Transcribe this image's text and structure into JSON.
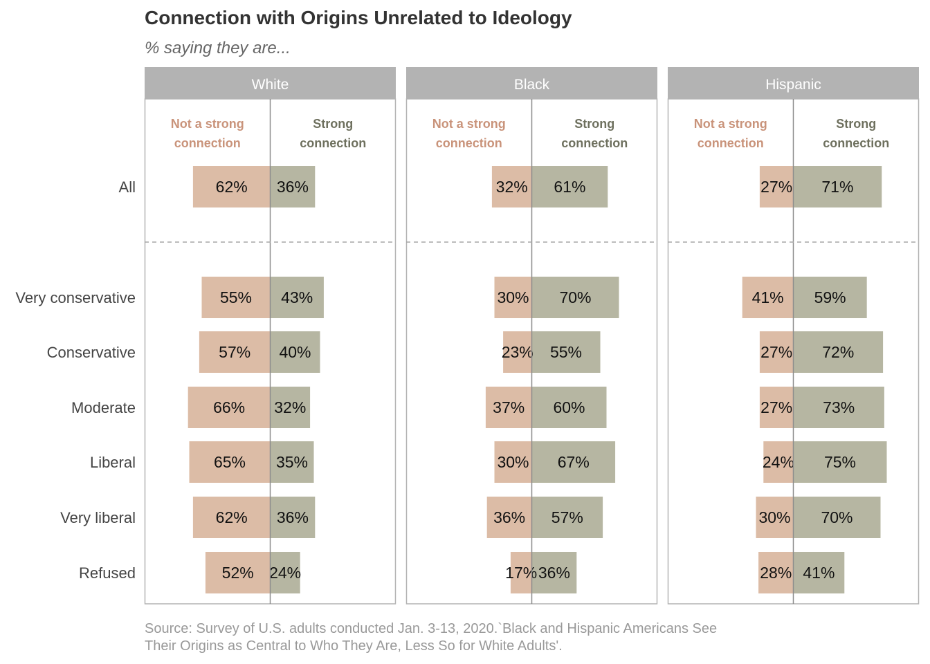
{
  "title": "Connection with Origins Unrelated to Ideology",
  "subtitle": "% saying they are...",
  "source_line1": "Source: Survey of U.S. adults conducted Jan. 3-13, 2020.`Black and Hispanic Americans See",
  "source_line2": "Their Origins as Central to Who They Are, Less So for White Adults'.",
  "colors": {
    "not_strong": "#dcbca6",
    "strong": "#b6b6a2",
    "not_strong_label": "#c9937a",
    "strong_label": "#6e705e",
    "strip": "#b3b3b3"
  },
  "chart_data": {
    "type": "bar",
    "orientation": "horizontal-diverging",
    "facets": [
      "White",
      "Black",
      "Hispanic"
    ],
    "categories": [
      "All",
      "Very conservative",
      "Conservative",
      "Moderate",
      "Liberal",
      "Very liberal",
      "Refused"
    ],
    "legend": {
      "not_strong": [
        "Not a strong",
        "connection"
      ],
      "strong": [
        "Strong",
        "connection"
      ]
    },
    "series": [
      {
        "name": "Not a strong connection",
        "values": {
          "White": [
            62,
            55,
            57,
            66,
            65,
            62,
            52
          ],
          "Black": [
            32,
            30,
            23,
            37,
            30,
            36,
            17
          ],
          "Hispanic": [
            27,
            41,
            27,
            27,
            24,
            30,
            28
          ]
        }
      },
      {
        "name": "Strong connection",
        "values": {
          "White": [
            36,
            43,
            40,
            32,
            35,
            36,
            24
          ],
          "Black": [
            61,
            70,
            55,
            60,
            67,
            57,
            36
          ],
          "Hispanic": [
            71,
            59,
            72,
            73,
            75,
            70,
            41
          ]
        }
      }
    ],
    "value_suffix": "%"
  }
}
